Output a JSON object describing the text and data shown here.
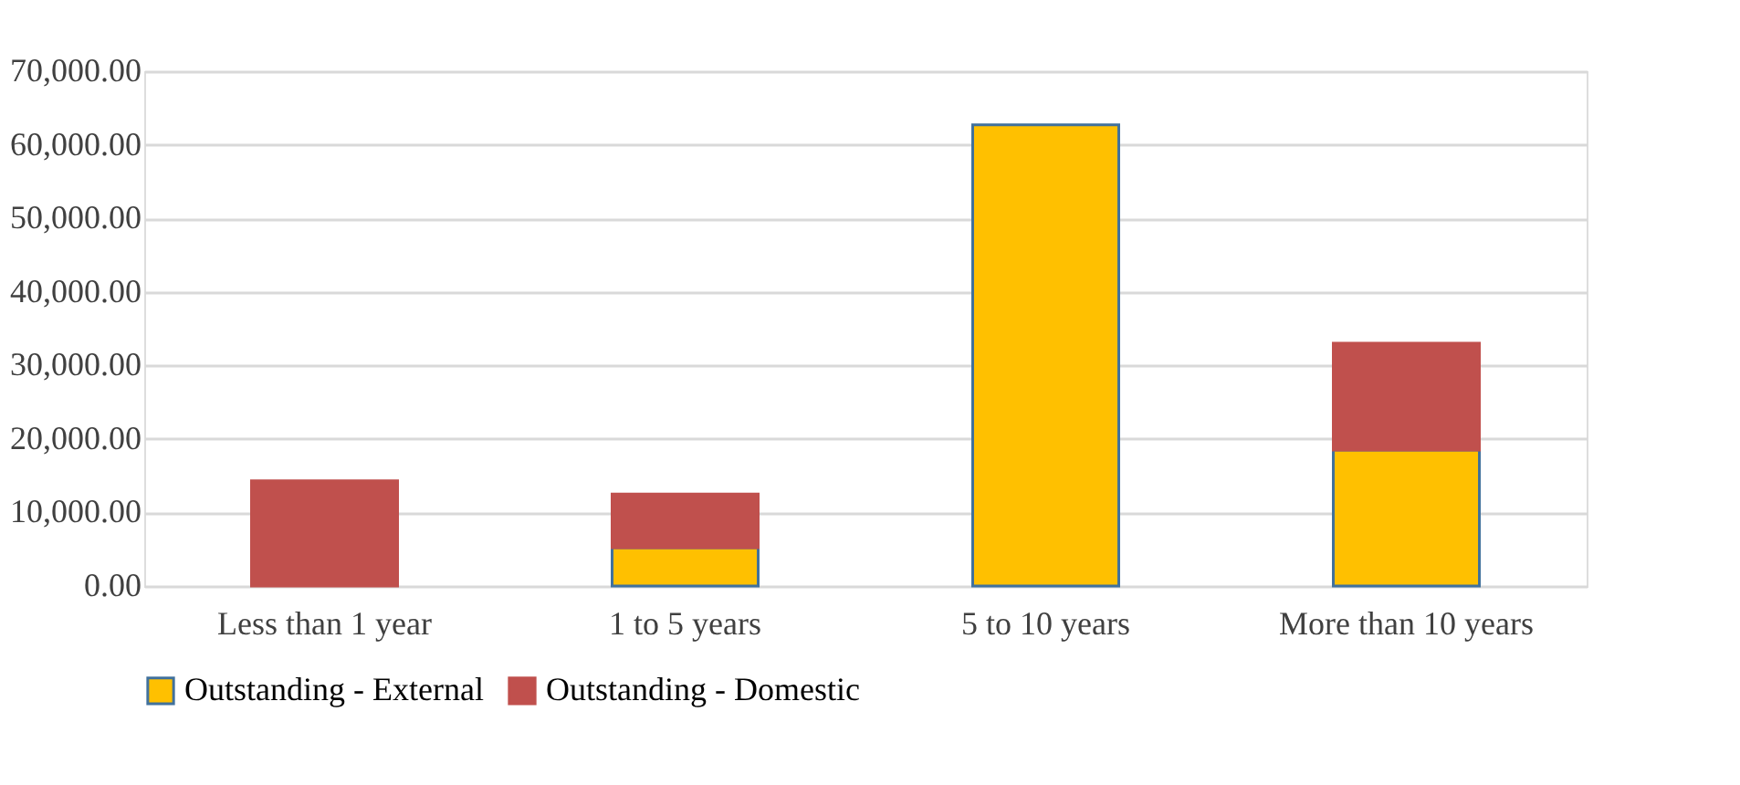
{
  "chart_data": {
    "type": "bar",
    "stacked": true,
    "categories": [
      "Less than 1 year",
      "1 to 5 years",
      "5 to 10 years",
      "More than 10 years"
    ],
    "series": [
      {
        "name": "Outstanding - External",
        "color": "#ffc000",
        "values": [
          null,
          5200,
          62700,
          18500
        ]
      },
      {
        "name": "Outstanding - Domestic",
        "color": "#c0504d",
        "values": [
          14300,
          7300,
          null,
          14500
        ]
      }
    ],
    "ylim": [
      0,
      70000
    ],
    "yticks": [
      {
        "value": 0,
        "label": "0.00"
      },
      {
        "value": 10000,
        "label": "10,000.00"
      },
      {
        "value": 20000,
        "label": "20,000.00"
      },
      {
        "value": 30000,
        "label": "30,000.00"
      },
      {
        "value": 40000,
        "label": "40,000.00"
      },
      {
        "value": 50000,
        "label": "50,000.00"
      },
      {
        "value": 60000,
        "label": "60,000.00"
      },
      {
        "value": 70000,
        "label": "70,000.00"
      }
    ],
    "grid": "y",
    "legend": "bottom"
  }
}
